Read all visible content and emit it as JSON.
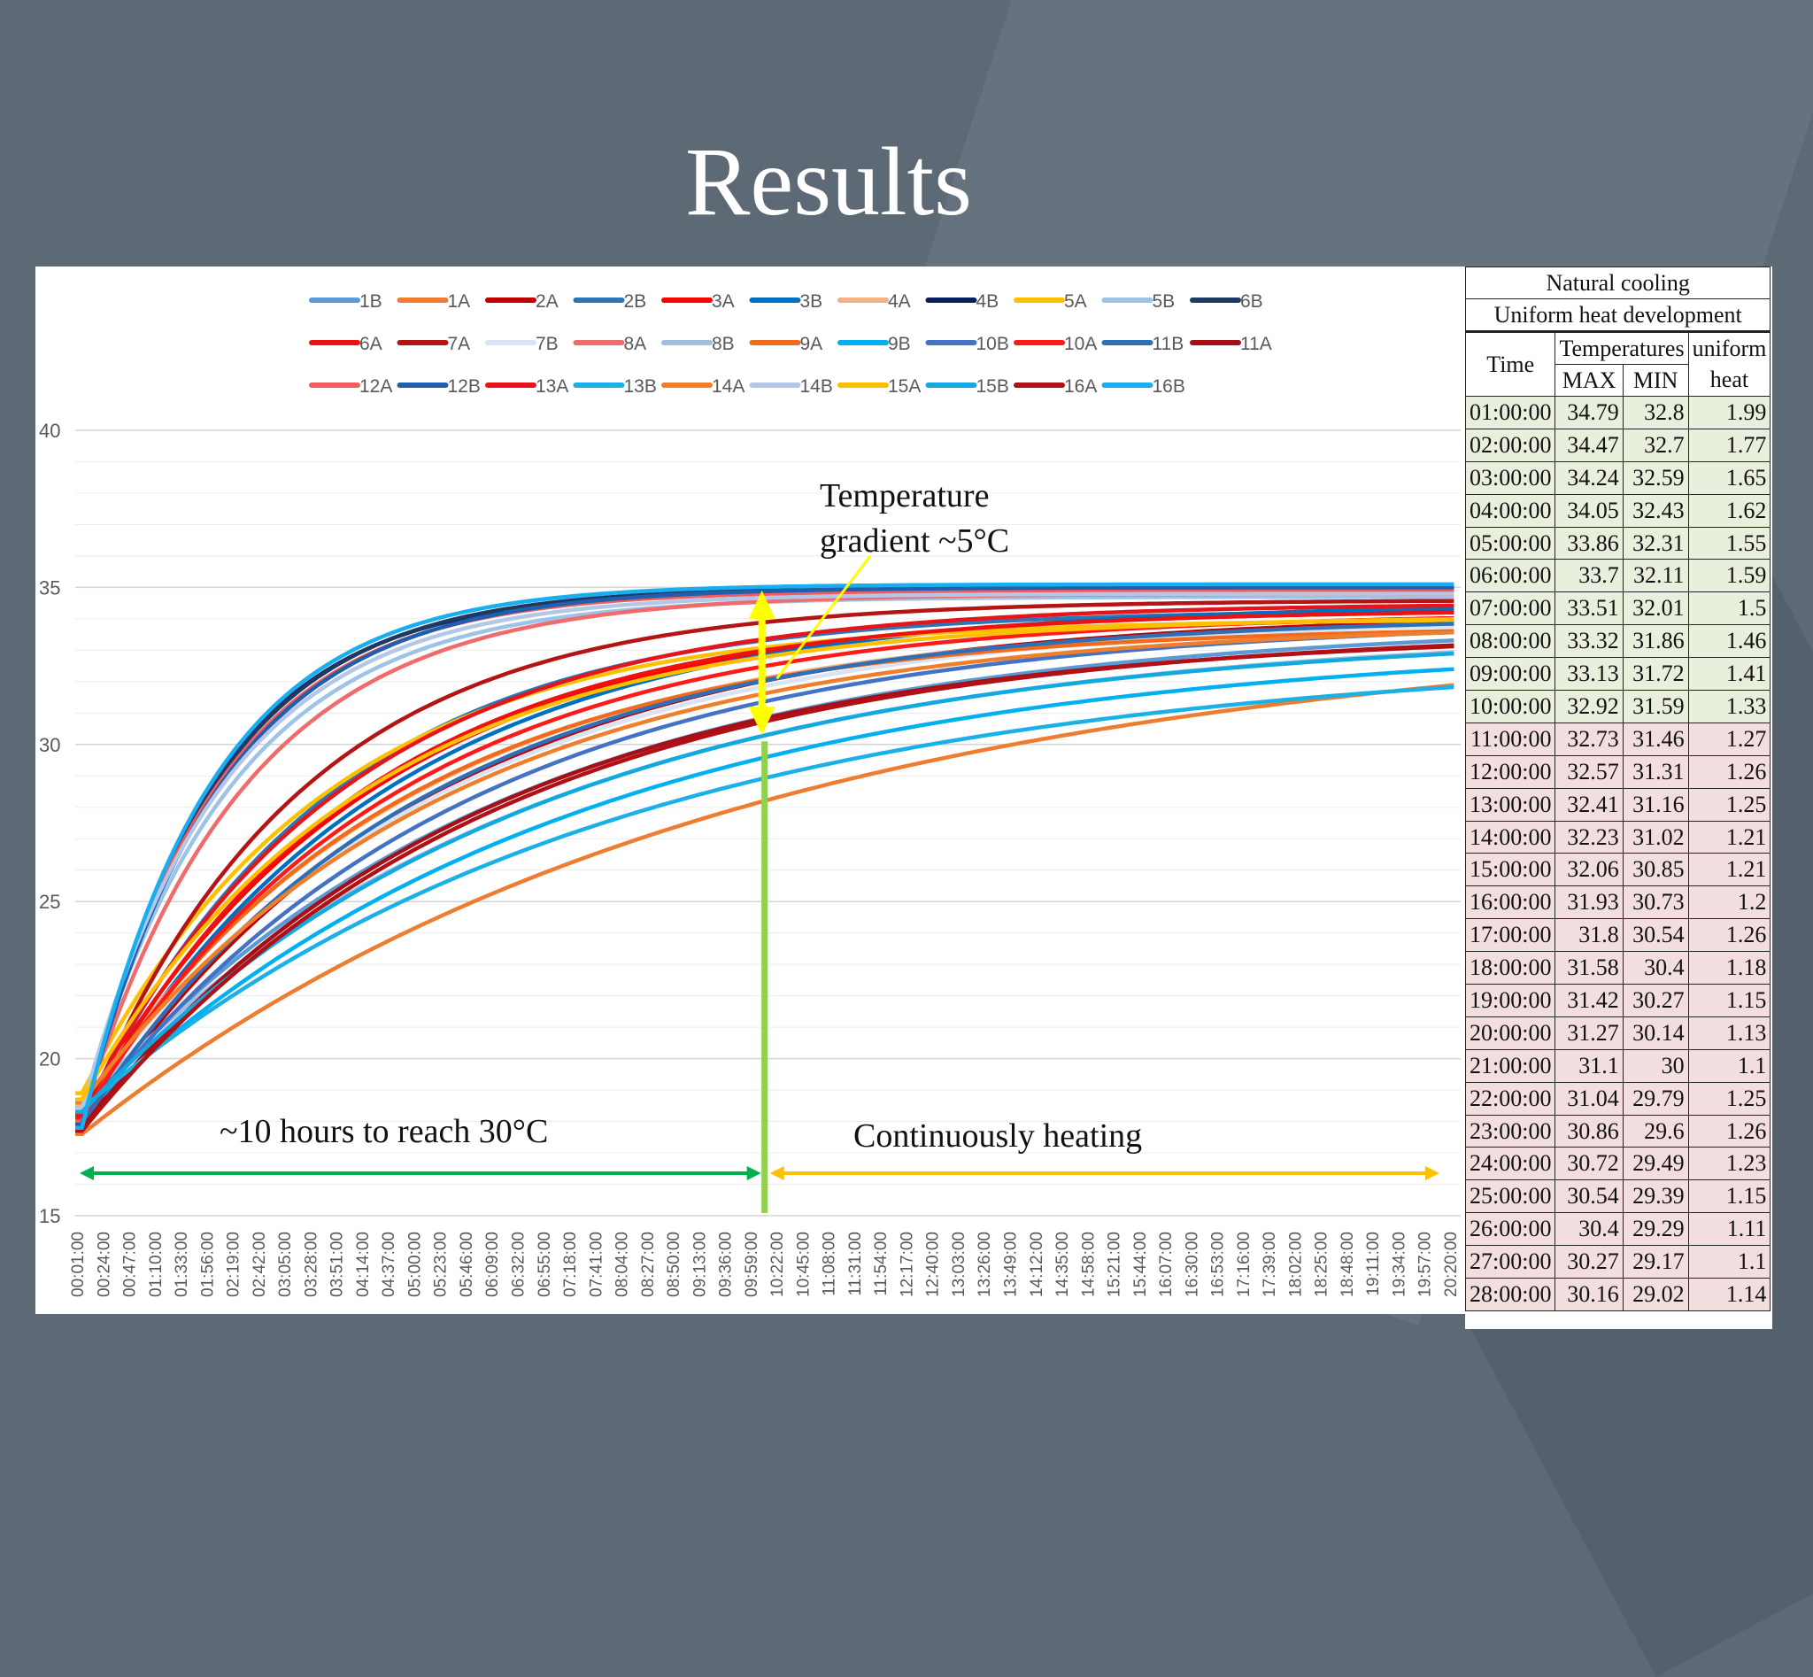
{
  "slide": {
    "title": "Results"
  },
  "chart_data": {
    "type": "line",
    "title": "",
    "xlabel": "",
    "ylabel": "",
    "ylim": [
      15,
      40
    ],
    "yticks": [
      15,
      20,
      25,
      30,
      35,
      40
    ],
    "xlim_hours": [
      0,
      20.5
    ],
    "xtick_labels": [
      "00:01:00",
      "00:24:00",
      "00:47:00",
      "01:10:00",
      "01:33:00",
      "01:56:00",
      "02:19:00",
      "02:42:00",
      "03:05:00",
      "03:28:00",
      "03:51:00",
      "04:14:00",
      "04:37:00",
      "05:00:00",
      "05:23:00",
      "05:46:00",
      "06:09:00",
      "06:32:00",
      "06:55:00",
      "07:18:00",
      "07:41:00",
      "08:04:00",
      "08:27:00",
      "08:50:00",
      "09:13:00",
      "09:36:00",
      "09:59:00",
      "10:22:00",
      "10:45:00",
      "11:08:00",
      "11:31:00",
      "11:54:00",
      "12:17:00",
      "12:40:00",
      "13:03:00",
      "13:26:00",
      "13:49:00",
      "14:12:00",
      "14:35:00",
      "14:58:00",
      "15:21:00",
      "15:44:00",
      "16:07:00",
      "16:30:00",
      "16:53:00",
      "17:16:00",
      "17:39:00",
      "18:02:00",
      "18:25:00",
      "18:48:00",
      "19:11:00",
      "19:34:00",
      "19:57:00",
      "20:20:00"
    ],
    "grid": true,
    "legend_position": "top",
    "series_model": "y(t) = start + (final - start) * (1 - exp(-t / tau)), t in hours",
    "series": [
      {
        "name": "1B",
        "color": "#5b9bd5",
        "start": 18.4,
        "final": 33.9,
        "tau": 6.2
      },
      {
        "name": "1A",
        "color": "#ed7d31",
        "start": 17.6,
        "final": 33.8,
        "tau": 9.5
      },
      {
        "name": "2A",
        "color": "#c00000",
        "start": 17.8,
        "final": 34.2,
        "tau": 5.0
      },
      {
        "name": "2B",
        "color": "#2e75b6",
        "start": 18.0,
        "final": 34.3,
        "tau": 3.6
      },
      {
        "name": "3A",
        "color": "#ff0000",
        "start": 18.2,
        "final": 34.4,
        "tau": 4.2
      },
      {
        "name": "3B",
        "color": "#0070c0",
        "start": 18.0,
        "final": 34.5,
        "tau": 4.4
      },
      {
        "name": "4A",
        "color": "#f4b183",
        "start": 18.5,
        "final": 34.0,
        "tau": 4.8
      },
      {
        "name": "4B",
        "color": "#0b1f5c",
        "start": 17.8,
        "final": 34.9,
        "tau": 1.9
      },
      {
        "name": "5A",
        "color": "#ffc000",
        "start": 18.9,
        "final": 34.0,
        "tau": 3.6
      },
      {
        "name": "5B",
        "color": "#9dc3e6",
        "start": 18.3,
        "final": 34.7,
        "tau": 2.2
      },
      {
        "name": "6B",
        "color": "#1f3864",
        "start": 17.9,
        "final": 35.0,
        "tau": 1.95
      },
      {
        "name": "6A",
        "color": "#ee1111",
        "start": 18.0,
        "final": 34.3,
        "tau": 4.0
      },
      {
        "name": "7A",
        "color": "#b41414",
        "start": 17.9,
        "final": 34.6,
        "tau": 3.2
      },
      {
        "name": "7B",
        "color": "#dae3f3",
        "start": 18.4,
        "final": 34.1,
        "tau": 5.2
      },
      {
        "name": "8A",
        "color": "#f06b6b",
        "start": 18.1,
        "final": 34.8,
        "tau": 2.4
      },
      {
        "name": "8B",
        "color": "#a5bce0",
        "start": 18.6,
        "final": 33.7,
        "tau": 6.8
      },
      {
        "name": "9A",
        "color": "#f26b1d",
        "start": 18.3,
        "final": 33.8,
        "tau": 4.6
      },
      {
        "name": "9B",
        "color": "#00b0f0",
        "start": 18.2,
        "final": 33.3,
        "tau": 7.2
      },
      {
        "name": "10B",
        "color": "#4472c4",
        "start": 18.0,
        "final": 34.0,
        "tau": 5.6
      },
      {
        "name": "10A",
        "color": "#ff1a1a",
        "start": 18.1,
        "final": 34.2,
        "tau": 4.5
      },
      {
        "name": "11B",
        "color": "#2f6fb6",
        "start": 17.9,
        "final": 34.1,
        "tau": 4.9
      },
      {
        "name": "11A",
        "color": "#a50f15",
        "start": 17.8,
        "final": 33.6,
        "tau": 5.8
      },
      {
        "name": "12A",
        "color": "#f45b5b",
        "start": 18.0,
        "final": 34.9,
        "tau": 2.0
      },
      {
        "name": "12B",
        "color": "#1f5fad",
        "start": 17.9,
        "final": 35.0,
        "tau": 2.05
      },
      {
        "name": "13A",
        "color": "#e8141c",
        "start": 18.2,
        "final": 34.5,
        "tau": 3.8
      },
      {
        "name": "13B",
        "color": "#1ab0e8",
        "start": 18.4,
        "final": 32.9,
        "tau": 7.8
      },
      {
        "name": "14A",
        "color": "#f07f2c",
        "start": 18.6,
        "final": 33.9,
        "tau": 5.3
      },
      {
        "name": "14B",
        "color": "#b4c7e7",
        "start": 18.4,
        "final": 34.8,
        "tau": 2.1
      },
      {
        "name": "15A",
        "color": "#ffbf00",
        "start": 18.7,
        "final": 34.1,
        "tau": 4.1
      },
      {
        "name": "15B",
        "color": "#12a8e0",
        "start": 18.3,
        "final": 33.6,
        "tau": 6.6
      },
      {
        "name": "16A",
        "color": "#b01016",
        "start": 17.7,
        "final": 33.7,
        "tau": 6.0
      },
      {
        "name": "16B",
        "color": "#18aef0",
        "start": 17.8,
        "final": 35.1,
        "tau": 1.9
      }
    ],
    "annotations": {
      "gradient_line1": "Temperature",
      "gradient_line2": "gradient ~5°C",
      "left_span": "~10 hours to reach 30°C",
      "right_span": "Continuously heating"
    }
  },
  "table": {
    "title1": "Natural cooling",
    "title2": "Uniform heat development",
    "col_time": "Time",
    "col_temps": "Temperatures",
    "col_max": "MAX",
    "col_min": "MIN",
    "col_uniform1": "uniform",
    "col_uniform2": "heat",
    "rows": [
      [
        "01:00:00",
        "34.79",
        "32.8",
        "1.99"
      ],
      [
        "02:00:00",
        "34.47",
        "32.7",
        "1.77"
      ],
      [
        "03:00:00",
        "34.24",
        "32.59",
        "1.65"
      ],
      [
        "04:00:00",
        "34.05",
        "32.43",
        "1.62"
      ],
      [
        "05:00:00",
        "33.86",
        "32.31",
        "1.55"
      ],
      [
        "06:00:00",
        "33.7",
        "32.11",
        "1.59"
      ],
      [
        "07:00:00",
        "33.51",
        "32.01",
        "1.5"
      ],
      [
        "08:00:00",
        "33.32",
        "31.86",
        "1.46"
      ],
      [
        "09:00:00",
        "33.13",
        "31.72",
        "1.41"
      ],
      [
        "10:00:00",
        "32.92",
        "31.59",
        "1.33"
      ],
      [
        "11:00:00",
        "32.73",
        "31.46",
        "1.27"
      ],
      [
        "12:00:00",
        "32.57",
        "31.31",
        "1.26"
      ],
      [
        "13:00:00",
        "32.41",
        "31.16",
        "1.25"
      ],
      [
        "14:00:00",
        "32.23",
        "31.02",
        "1.21"
      ],
      [
        "15:00:00",
        "32.06",
        "30.85",
        "1.21"
      ],
      [
        "16:00:00",
        "31.93",
        "30.73",
        "1.2"
      ],
      [
        "17:00:00",
        "31.8",
        "30.54",
        "1.26"
      ],
      [
        "18:00:00",
        "31.58",
        "30.4",
        "1.18"
      ],
      [
        "19:00:00",
        "31.42",
        "30.27",
        "1.15"
      ],
      [
        "20:00:00",
        "31.27",
        "30.14",
        "1.13"
      ],
      [
        "21:00:00",
        "31.1",
        "30",
        "1.1"
      ],
      [
        "22:00:00",
        "31.04",
        "29.79",
        "1.25"
      ],
      [
        "23:00:00",
        "30.86",
        "29.6",
        "1.26"
      ],
      [
        "24:00:00",
        "30.72",
        "29.49",
        "1.23"
      ],
      [
        "25:00:00",
        "30.54",
        "29.39",
        "1.15"
      ],
      [
        "26:00:00",
        "30.4",
        "29.29",
        "1.11"
      ],
      [
        "27:00:00",
        "30.27",
        "29.17",
        "1.1"
      ],
      [
        "28:00:00",
        "30.16",
        "29.02",
        "1.14"
      ]
    ],
    "green_rows": 10
  }
}
